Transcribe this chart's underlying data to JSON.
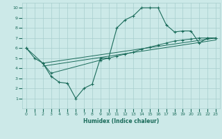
{
  "xlabel": "Humidex (Indice chaleur)",
  "bg_color": "#cce9e8",
  "grid_color": "#a8cece",
  "line_color": "#1a6b5a",
  "xlim": [
    -0.5,
    23.5
  ],
  "ylim": [
    0,
    10.5
  ],
  "xticks": [
    0,
    1,
    2,
    3,
    4,
    5,
    6,
    7,
    8,
    9,
    10,
    11,
    12,
    13,
    14,
    15,
    16,
    17,
    18,
    19,
    20,
    21,
    22,
    23
  ],
  "yticks": [
    1,
    2,
    3,
    4,
    5,
    6,
    7,
    8,
    9,
    10
  ],
  "series1_x": [
    0,
    1,
    2,
    3,
    4,
    5,
    6,
    7,
    8,
    9,
    10,
    11,
    12,
    13,
    14,
    15,
    16,
    17,
    18,
    19,
    20,
    21,
    22,
    23
  ],
  "series1_y": [
    6.0,
    5.0,
    4.5,
    3.2,
    2.6,
    2.5,
    1.0,
    2.0,
    2.4,
    5.0,
    5.0,
    8.0,
    8.8,
    9.2,
    10.0,
    10.0,
    10.0,
    8.3,
    7.6,
    7.7,
    7.7,
    6.5,
    7.0,
    7.0
  ],
  "series2_x": [
    0,
    2,
    3,
    9,
    10,
    11,
    12,
    13,
    14,
    15,
    16,
    17,
    18,
    19,
    20,
    21,
    22,
    23
  ],
  "series2_y": [
    6.0,
    4.5,
    3.5,
    4.8,
    5.0,
    5.2,
    5.4,
    5.6,
    5.9,
    6.1,
    6.3,
    6.5,
    6.7,
    6.8,
    6.9,
    7.0,
    7.0,
    7.0
  ],
  "series3_x": [
    2,
    23
  ],
  "series3_y": [
    4.5,
    7.0
  ],
  "series4_x": [
    2,
    23
  ],
  "series4_y": [
    4.2,
    6.8
  ],
  "xlabel_fontsize": 5.5,
  "tick_fontsize": 4.5
}
